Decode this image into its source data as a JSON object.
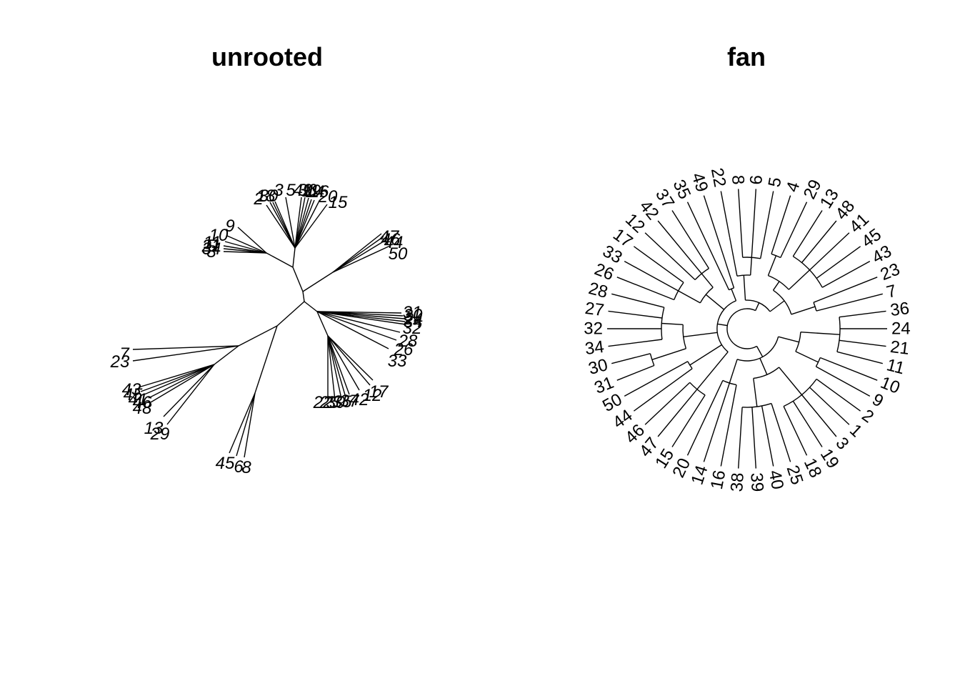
{
  "panels": [
    {
      "title": "unrooted",
      "tree_type": "unrooted",
      "tips": [
        "1",
        "2",
        "3",
        "4",
        "5",
        "6",
        "7",
        "8",
        "9",
        "10",
        "11",
        "12",
        "13",
        "14",
        "15",
        "16",
        "17",
        "18",
        "19",
        "20",
        "21",
        "22",
        "23",
        "24",
        "25",
        "26",
        "27",
        "28",
        "29",
        "30",
        "31",
        "32",
        "33",
        "34",
        "35",
        "36",
        "37",
        "38",
        "39",
        "40",
        "41",
        "42",
        "43",
        "44",
        "45",
        "46",
        "47",
        "48",
        "49",
        "50"
      ]
    },
    {
      "title": "fan",
      "tree_type": "fan",
      "tips_clockwise_from_east": [
        "7",
        "36",
        "24",
        "21",
        "11",
        "10",
        "9",
        "2",
        "1",
        "3",
        "19",
        "18",
        "25",
        "40",
        "39",
        "38",
        "16",
        "14",
        "20",
        "15",
        "47",
        "46",
        "44",
        "50",
        "31",
        "30",
        "34",
        "32",
        "27",
        "28",
        "26",
        "33",
        "17",
        "12",
        "42",
        "37",
        "35",
        "49",
        "22",
        "8",
        "6",
        "5",
        "4",
        "29",
        "13",
        "48",
        "41",
        "45",
        "43",
        "23"
      ]
    }
  ]
}
